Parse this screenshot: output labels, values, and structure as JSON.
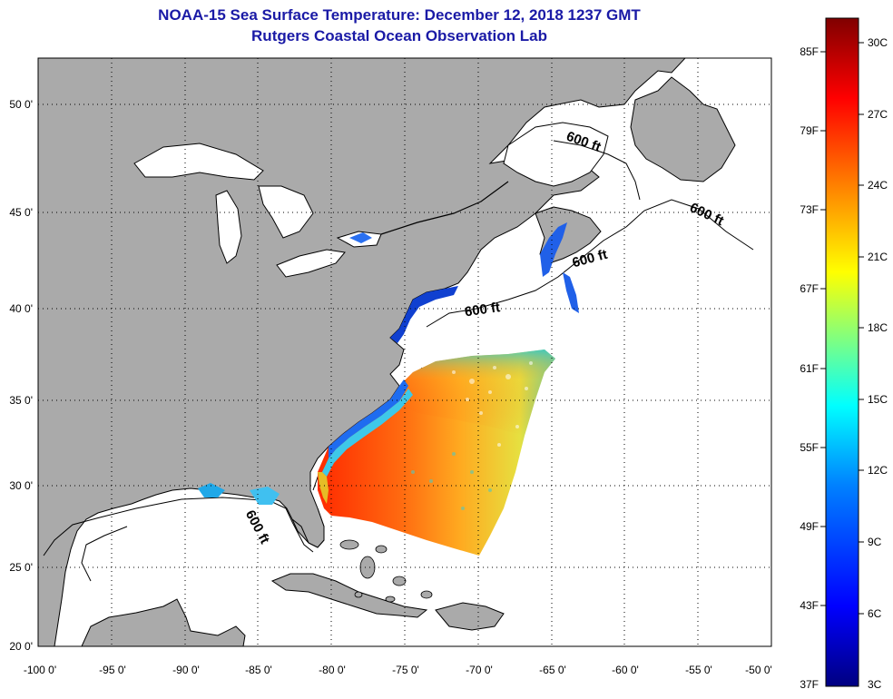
{
  "title": {
    "line1": "NOAA-15 Sea Surface Temperature:  December 12, 2018 1237 GMT",
    "line2": "Rutgers Coastal Ocean Observation Lab"
  },
  "map": {
    "lat_labels": [
      "50 0'",
      "45 0'",
      "40 0'",
      "35 0'",
      "30 0'",
      "25 0'",
      "20 0'"
    ],
    "lon_labels": [
      "-100 0'",
      "-95 0'",
      "-90 0'",
      "-85 0'",
      "-80 0'",
      "-75 0'",
      "-70 0'",
      "-65 0'",
      "-60 0'",
      "-55 0'",
      "-50 0'"
    ],
    "lat_range": [
      20,
      52.5
    ],
    "lon_range": [
      -100,
      -50
    ],
    "contour_label": "600 ft",
    "colors": {
      "land": "#aaaaaa",
      "ocean": "#ffffff",
      "coast": "#000000"
    }
  },
  "colorbar": {
    "f_labels": [
      "85F",
      "79F",
      "73F",
      "67F",
      "61F",
      "55F",
      "49F",
      "43F",
      "37F"
    ],
    "c_labels": [
      "30C",
      "27C",
      "24C",
      "21C",
      "18C",
      "15C",
      "12C",
      "9C",
      "6C",
      "3C"
    ],
    "colors": [
      "#000080",
      "#0000ff",
      "#0080ff",
      "#00ffff",
      "#80ff80",
      "#ffff00",
      "#ff8000",
      "#ff0000",
      "#800000"
    ]
  }
}
